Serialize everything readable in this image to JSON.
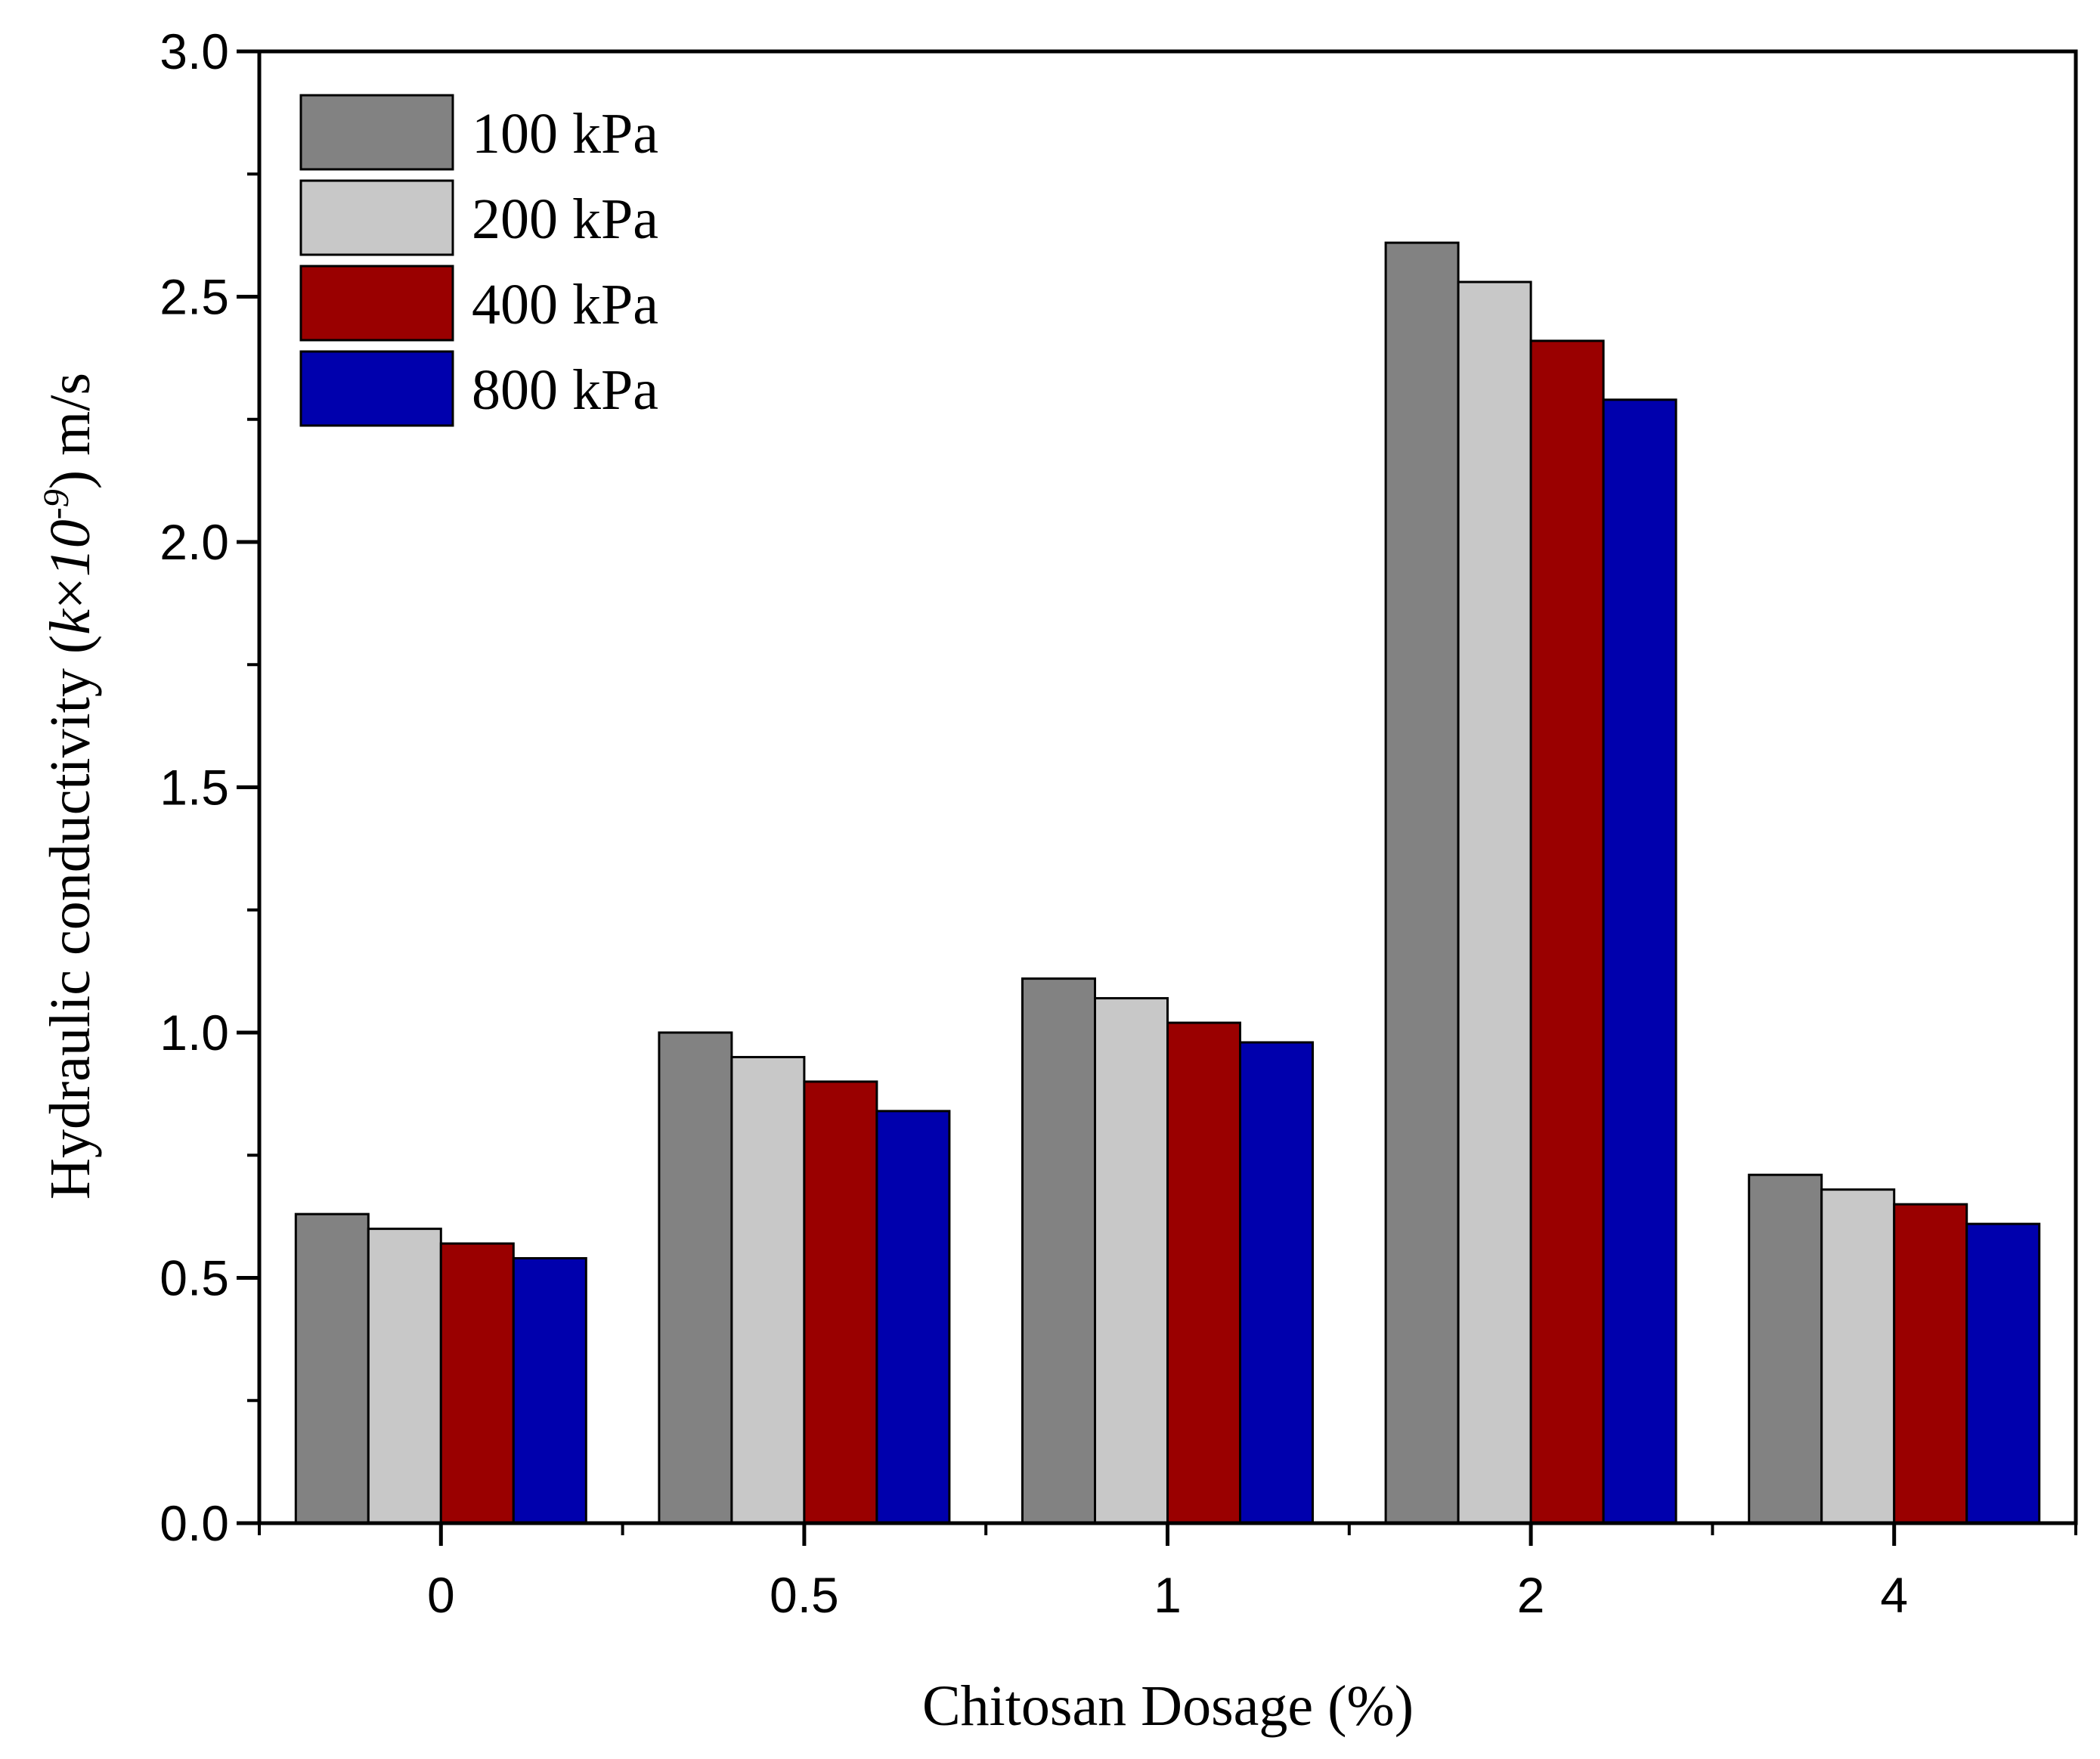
{
  "chart_data": {
    "type": "bar",
    "title": "",
    "xlabel": "Chitosan Dosage (%)",
    "ylabel": {
      "prefix": "Hydraulic conductivity (",
      "var": "k",
      "times": "×",
      "base": "10",
      "exp": "-9",
      "suffix": ") m/s"
    },
    "categories": [
      "0",
      "0.5",
      "1",
      "2",
      "4"
    ],
    "ylim": [
      0,
      3.0
    ],
    "yticks": [
      "0.0",
      "0.5",
      "1.0",
      "1.5",
      "2.0",
      "2.5",
      "3.0"
    ],
    "legend_position": "top-left",
    "series": [
      {
        "name": "100 kPa",
        "color": "#828282",
        "values": [
          0.63,
          1.0,
          1.11,
          2.61,
          0.71
        ]
      },
      {
        "name": "200 kPa",
        "color": "#c8c8c8",
        "values": [
          0.6,
          0.95,
          1.07,
          2.53,
          0.68
        ]
      },
      {
        "name": "400 kPa",
        "color": "#9a0000",
        "values": [
          0.57,
          0.9,
          1.02,
          2.41,
          0.65
        ]
      },
      {
        "name": "800 kPa",
        "color": "#0000ad",
        "values": [
          0.54,
          0.84,
          0.98,
          2.29,
          0.61
        ]
      }
    ]
  }
}
